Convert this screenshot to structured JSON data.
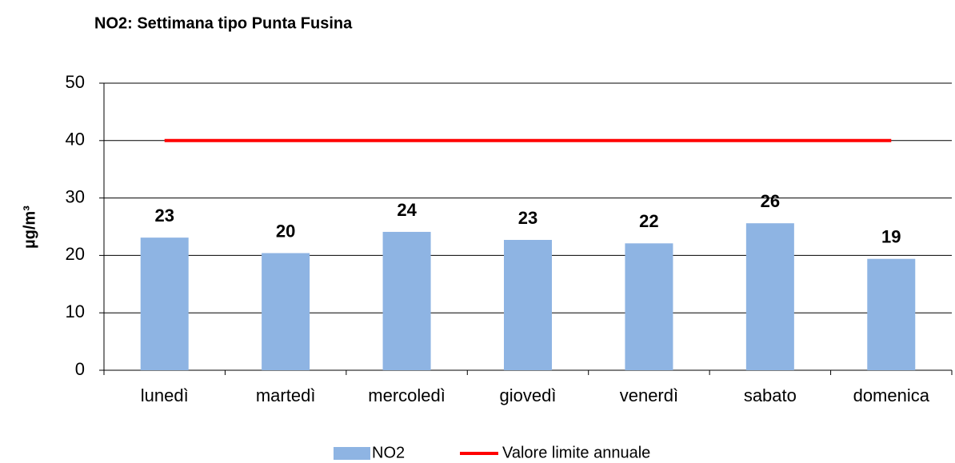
{
  "chart_data": {
    "type": "bar",
    "title": "NO2: Settimana tipo Punta Fusina",
    "y_label": "µg/m³",
    "categories": [
      "lunedì",
      "martedì",
      "mercoledì",
      "giovedì",
      "venerdì",
      "sabato",
      "domenica"
    ],
    "series": [
      {
        "name": "NO2",
        "type": "bar",
        "color": "#8eb4e3",
        "values": [
          23.1,
          20.4,
          24.1,
          22.7,
          22.1,
          25.6,
          19.4
        ],
        "value_labels": [
          "23",
          "20",
          "24",
          "23",
          "22",
          "26",
          "19"
        ]
      },
      {
        "name": "Valore limite annuale",
        "type": "line",
        "color": "#ff0000",
        "values": [
          40,
          40,
          40,
          40,
          40,
          40,
          40
        ]
      }
    ],
    "ylim": [
      0,
      50
    ],
    "yticks": [
      0,
      10,
      20,
      30,
      40,
      50
    ],
    "grid": true,
    "legend": "bottom"
  }
}
